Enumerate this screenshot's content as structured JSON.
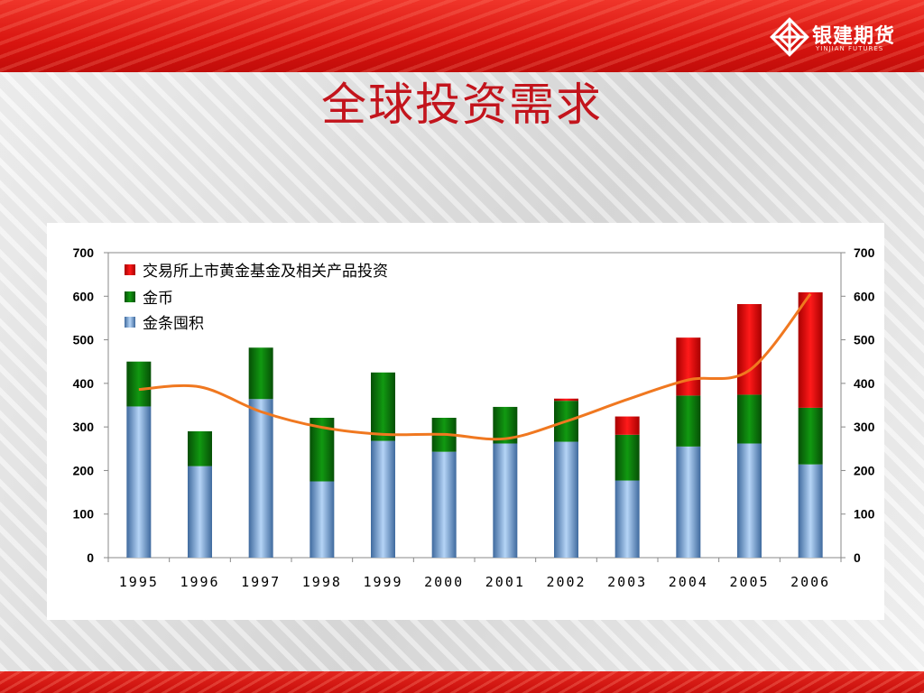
{
  "header": {
    "title": "全球投资需求",
    "logo_text": "银建期货",
    "logo_sub": "YINJIAN FUTURES"
  },
  "colors": {
    "etf": "#e60000",
    "coins": "#0a7a0a",
    "bars": "#8fb8e8",
    "line": "#f07820"
  },
  "chart_data": {
    "type": "bar",
    "stacked": true,
    "categories": [
      "1995",
      "1996",
      "1997",
      "1998",
      "1999",
      "2000",
      "2001",
      "2002",
      "2003",
      "2004",
      "2005",
      "2006"
    ],
    "series": [
      {
        "name": "金条囤积",
        "values": [
          347,
          210,
          364,
          175,
          268,
          243,
          262,
          266,
          177,
          255,
          262,
          214
        ]
      },
      {
        "name": "金币",
        "values": [
          103,
          80,
          118,
          146,
          157,
          78,
          84,
          94,
          105,
          117,
          112,
          130
        ]
      },
      {
        "name": "交易所上市黄金基金及相关产品投资",
        "values": [
          0,
          0,
          0,
          0,
          0,
          0,
          0,
          5,
          42,
          133,
          208,
          265
        ]
      }
    ],
    "trend_line": [
      386,
      392,
      335,
      299,
      283,
      283,
      273,
      313,
      363,
      408,
      430,
      605
    ],
    "ylim": [
      0,
      700
    ],
    "yticks": [
      "0",
      "100",
      "200",
      "300",
      "400",
      "500",
      "600",
      "700"
    ],
    "y2ticks": [
      "0",
      "100",
      "200",
      "300",
      "400",
      "500",
      "600",
      "700"
    ],
    "legend_position": "top-left",
    "grid": false
  }
}
